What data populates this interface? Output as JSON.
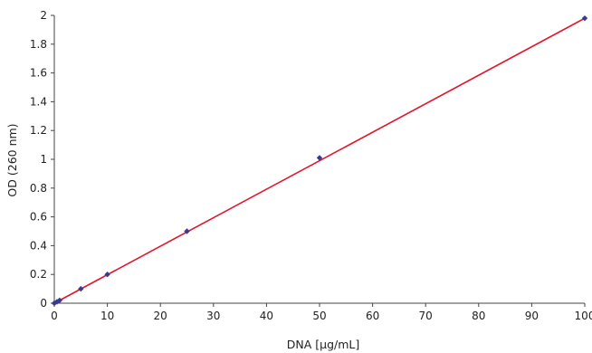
{
  "chart_data": {
    "type": "scatter",
    "xlabel": "DNA  [µg/mL]",
    "ylabel": "OD (260 nm)",
    "xlim": [
      0,
      100
    ],
    "ylim": [
      0,
      2
    ],
    "x_ticks": [
      0,
      10,
      20,
      30,
      40,
      50,
      60,
      70,
      80,
      90,
      100
    ],
    "y_ticks": [
      0,
      0.2,
      0.4,
      0.6,
      0.8,
      1,
      1.2,
      1.4,
      1.6,
      1.8,
      2
    ],
    "x_tick_labels": [
      "0",
      "10",
      "20",
      "30",
      "40",
      "50",
      "60",
      "70",
      "80",
      "90",
      "100"
    ],
    "y_tick_labels": [
      "0",
      "0.2",
      "0.4",
      "0.6",
      "0.8",
      "1",
      "1.2",
      "1.4",
      "1.6",
      "1.8",
      "2"
    ],
    "grid": false,
    "legend": "none",
    "series": [
      {
        "x": [
          0,
          0.5,
          1,
          5,
          10,
          25,
          50,
          100
        ],
        "y": [
          0,
          0.01,
          0.02,
          0.1,
          0.2,
          0.5,
          1.01,
          1.98
        ],
        "marker": "diamond",
        "color": "#3b3a8e"
      }
    ],
    "trendline": {
      "type": "linear",
      "from": [
        0,
        0
      ],
      "to": [
        100,
        1.98
      ],
      "color": "#e0162b"
    },
    "axis_color": "#444444"
  }
}
